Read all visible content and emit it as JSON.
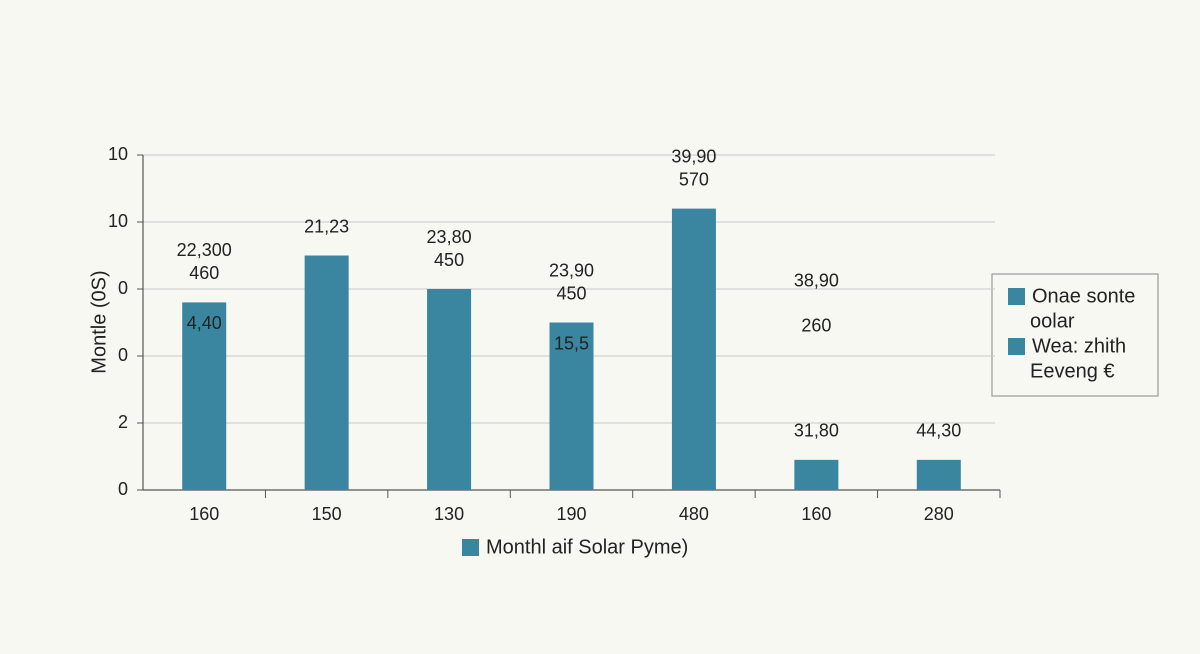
{
  "chart_data": {
    "type": "bar",
    "y_label": "Montle (0S)",
    "categories": [
      "160",
      "150",
      "130",
      "190",
      "480",
      "160",
      "280"
    ],
    "series": [
      {
        "name": "Monthl aif Solar Pyme)",
        "color": "#3a86a1",
        "values": [
          5.6,
          7.0,
          6.0,
          5.0,
          8.4,
          0.9,
          0.9
        ]
      }
    ],
    "above_labels": [
      [
        "22,300",
        "460"
      ],
      [
        "21,23"
      ],
      [
        "23,80",
        "450"
      ],
      [
        "23,90",
        "450"
      ],
      [
        "39,90",
        "570"
      ],
      [
        "38,90",
        "260",
        "31,80"
      ],
      [
        "44,30"
      ]
    ],
    "inside_labels": [
      "4,40",
      null,
      null,
      "15,5",
      null,
      null,
      null
    ],
    "ylim": [
      0,
      10
    ],
    "yticks": [
      0,
      2,
      {
        "value": 4,
        "label": "0"
      },
      {
        "value": 6,
        "label": "0"
      },
      {
        "value": 8,
        "label": "10"
      },
      10
    ],
    "grid": true,
    "legend_box": [
      {
        "label": [
          "Onae sonte",
          "oolar"
        ],
        "color": "#3a86a1"
      },
      {
        "label": [
          "Wea: zhith",
          "Eeveng €"
        ],
        "color": "#3a86a1"
      }
    ]
  }
}
